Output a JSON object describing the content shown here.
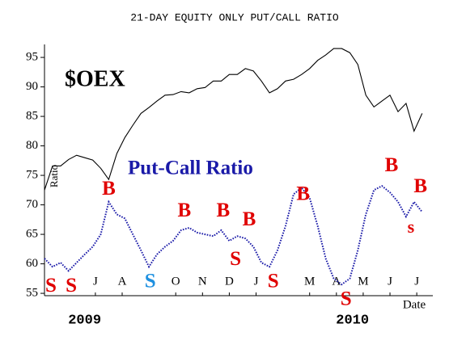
{
  "chart_data": {
    "type": "line",
    "title": "21-DAY EQUITY ONLY PUT/CALL RATIO",
    "ylabel": "Ratio",
    "xlabel": "Date",
    "ylim": [
      54.6,
      97.2
    ],
    "yticks": [
      55,
      60,
      65,
      70,
      75,
      80,
      85,
      90,
      95
    ],
    "xlim": [
      0.6,
      15.1
    ],
    "xticks": [
      {
        "value": 2.5,
        "label": "J"
      },
      {
        "value": 3.5,
        "label": "A"
      },
      {
        "value": 5.5,
        "label": "O"
      },
      {
        "value": 6.5,
        "label": "N"
      },
      {
        "value": 7.5,
        "label": "D"
      },
      {
        "value": 8.5,
        "label": "J"
      },
      {
        "value": 10.5,
        "label": "M"
      },
      {
        "value": 11.5,
        "label": "A"
      },
      {
        "value": 12.5,
        "label": "M"
      },
      {
        "value": 13.5,
        "label": "J"
      },
      {
        "value": 14.5,
        "label": "J"
      }
    ],
    "years": [
      {
        "value": 2.1,
        "label": "2009"
      },
      {
        "value": 12.1,
        "label": "2010"
      }
    ],
    "x": [
      0.6,
      0.9,
      1.2,
      1.5,
      1.8,
      2.1,
      2.4,
      2.7,
      3.0,
      3.3,
      3.6,
      3.9,
      4.2,
      4.5,
      4.8,
      5.1,
      5.4,
      5.7,
      6.0,
      6.3,
      6.6,
      6.9,
      7.2,
      7.5,
      7.8,
      8.1,
      8.4,
      8.7,
      9.0,
      9.3,
      9.6,
      9.9,
      10.2,
      10.5,
      10.8,
      11.1,
      11.4,
      11.7,
      12.0,
      12.3,
      12.6,
      12.9,
      13.2,
      13.5,
      13.8,
      14.1,
      14.4,
      14.7
    ],
    "series": [
      {
        "name": "$OEX",
        "color": "#000000",
        "style": "solid",
        "values": [
          72.5,
          76.6,
          76.6,
          77.7,
          78.4,
          78.0,
          77.6,
          76.2,
          74.3,
          78.7,
          81.4,
          83.5,
          85.5,
          86.5,
          87.6,
          88.6,
          88.7,
          89.2,
          89.0,
          89.7,
          89.9,
          91.0,
          91.0,
          92.1,
          92.1,
          93.1,
          92.7,
          91.0,
          89.0,
          89.7,
          91.0,
          91.3,
          92.1,
          93.1,
          94.5,
          95.4,
          96.5,
          96.5,
          95.8,
          93.8,
          88.6,
          86.6,
          87.6,
          88.6,
          85.8,
          87.2,
          82.5,
          85.5
        ]
      },
      {
        "name": "Put-Call Ratio",
        "color": "#1a1aa8",
        "style": "dotted",
        "values": [
          60.9,
          59.5,
          60.2,
          58.8,
          60.2,
          61.6,
          62.9,
          65.0,
          70.5,
          68.4,
          67.7,
          65.0,
          62.3,
          59.5,
          61.6,
          62.9,
          63.9,
          65.7,
          66.1,
          65.3,
          65.0,
          64.7,
          65.7,
          63.9,
          64.7,
          64.3,
          62.9,
          60.2,
          59.5,
          62.3,
          66.4,
          71.8,
          72.9,
          71.2,
          66.4,
          60.9,
          57.5,
          56.5,
          57.5,
          62.3,
          68.4,
          72.5,
          73.2,
          72.1,
          70.5,
          68.0,
          70.5,
          68.8
        ]
      }
    ],
    "annotations": [
      {
        "label": "S",
        "x": 0.84,
        "y": 56.1,
        "color": "#e00000"
      },
      {
        "label": "S",
        "x": 1.6,
        "y": 56.1,
        "color": "#e00000"
      },
      {
        "label": "B",
        "x": 3.0,
        "y": 72.5,
        "color": "#e00000"
      },
      {
        "label": "S",
        "x": 4.55,
        "y": 56.8,
        "color": "#1e90e0"
      },
      {
        "label": "B",
        "x": 5.82,
        "y": 68.8,
        "color": "#e00000"
      },
      {
        "label": "B",
        "x": 7.27,
        "y": 68.8,
        "color": "#e00000"
      },
      {
        "label": "S",
        "x": 7.73,
        "y": 60.6,
        "color": "#e00000"
      },
      {
        "label": "B",
        "x": 8.24,
        "y": 67.3,
        "color": "#e00000"
      },
      {
        "label": "S",
        "x": 9.14,
        "y": 56.8,
        "color": "#e00000"
      },
      {
        "label": "B",
        "x": 10.26,
        "y": 71.6,
        "color": "#e00000"
      },
      {
        "label": "S",
        "x": 11.86,
        "y": 53.8,
        "color": "#e00000"
      },
      {
        "label": "B",
        "x": 13.56,
        "y": 76.5,
        "color": "#e00000"
      },
      {
        "label": "s",
        "x": 14.28,
        "y": 66.0,
        "color": "#e00000"
      },
      {
        "label": "B",
        "x": 14.64,
        "y": 72.9,
        "color": "#e00000"
      }
    ]
  }
}
